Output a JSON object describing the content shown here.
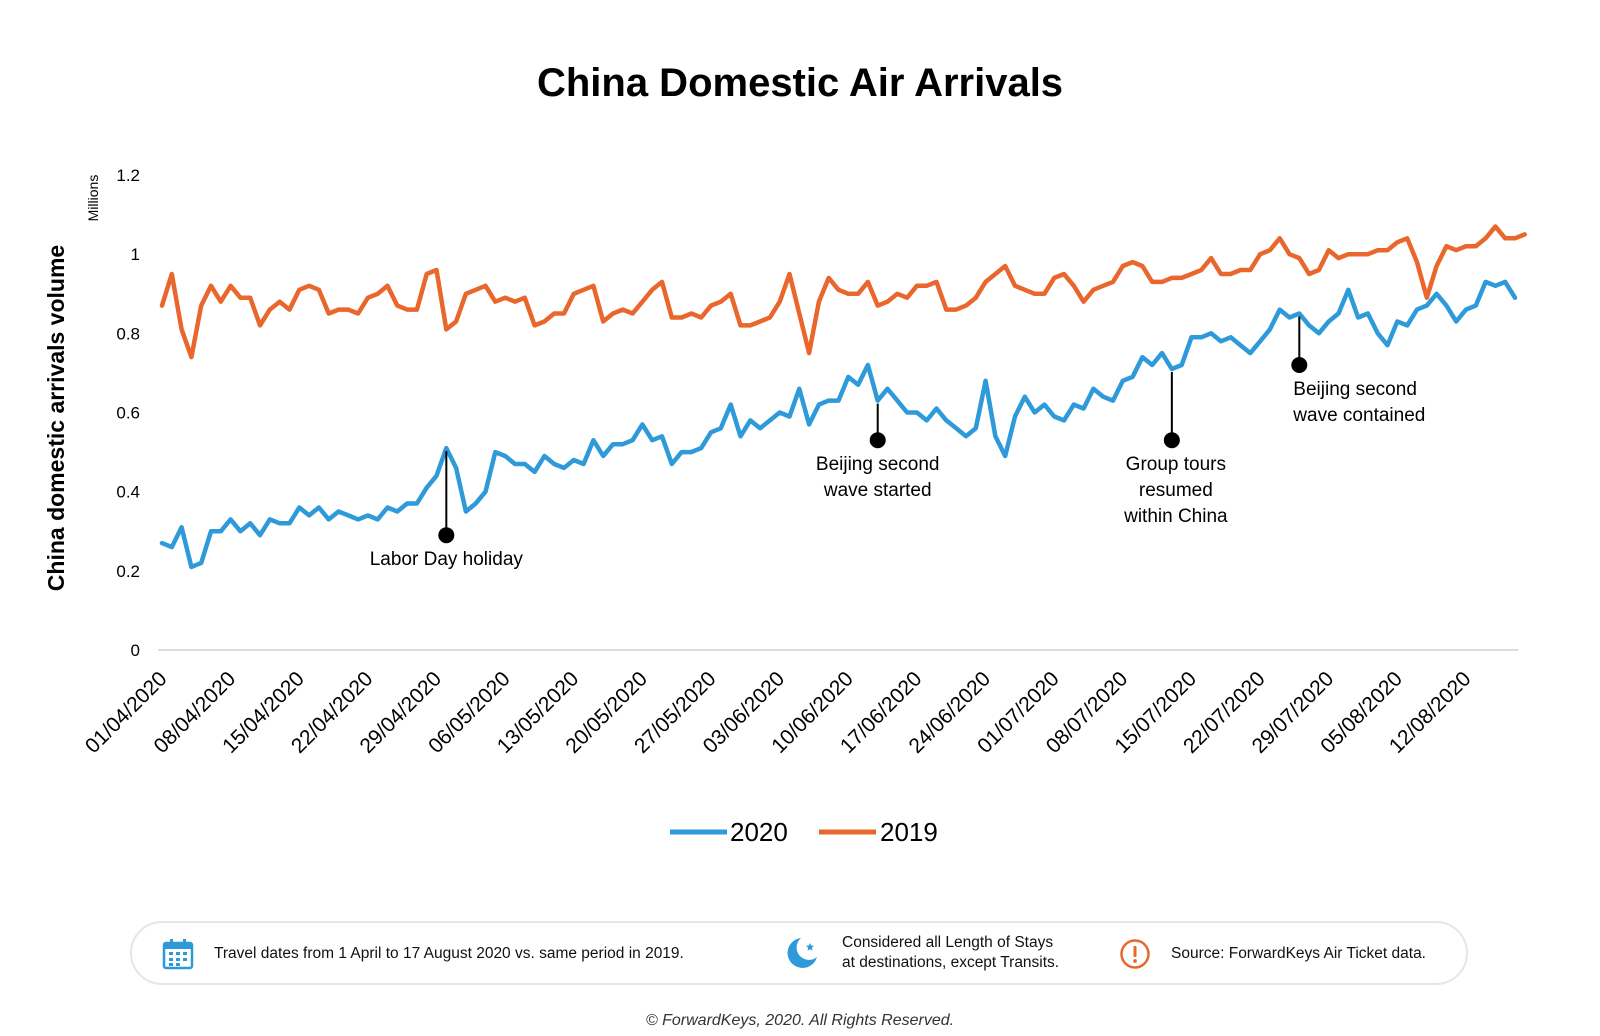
{
  "chart_data": {
    "type": "line",
    "title": "China Domestic Air Arrivals",
    "ylabel": "China domestic arrivals volume",
    "yunit": "Millions",
    "ylim": [
      0,
      1.2
    ],
    "yticks": [
      "0",
      "0.2",
      "0.4",
      "0.6",
      "0.8",
      "1",
      "1.2"
    ],
    "x_start": "01/04/2020",
    "x_end": "17/08/2020",
    "xtick_labels": [
      "01/04/2020",
      "08/04/2020",
      "15/04/2020",
      "22/04/2020",
      "29/04/2020",
      "06/05/2020",
      "13/05/2020",
      "20/05/2020",
      "27/05/2020",
      "03/06/2020",
      "10/06/2020",
      "17/06/2020",
      "24/06/2020",
      "01/07/2020",
      "08/07/2020",
      "15/07/2020",
      "22/07/2020",
      "29/07/2020",
      "05/08/2020",
      "12/08/2020"
    ],
    "legend_position": "bottom",
    "grid": false,
    "series": [
      {
        "name": "2020",
        "color": "#2e9ad9",
        "values": [
          0.27,
          0.26,
          0.31,
          0.21,
          0.22,
          0.3,
          0.3,
          0.33,
          0.3,
          0.32,
          0.29,
          0.33,
          0.32,
          0.32,
          0.36,
          0.34,
          0.36,
          0.33,
          0.35,
          0.34,
          0.33,
          0.34,
          0.33,
          0.36,
          0.35,
          0.37,
          0.37,
          0.41,
          0.44,
          0.51,
          0.46,
          0.35,
          0.37,
          0.4,
          0.5,
          0.49,
          0.47,
          0.47,
          0.45,
          0.49,
          0.47,
          0.46,
          0.48,
          0.47,
          0.53,
          0.49,
          0.52,
          0.52,
          0.53,
          0.57,
          0.53,
          0.54,
          0.47,
          0.5,
          0.5,
          0.51,
          0.55,
          0.56,
          0.62,
          0.54,
          0.58,
          0.56,
          0.58,
          0.6,
          0.59,
          0.66,
          0.57,
          0.62,
          0.63,
          0.63,
          0.69,
          0.67,
          0.72,
          0.63,
          0.66,
          0.63,
          0.6,
          0.6,
          0.58,
          0.61,
          0.58,
          0.56,
          0.54,
          0.56,
          0.68,
          0.54,
          0.49,
          0.59,
          0.64,
          0.6,
          0.62,
          0.59,
          0.58,
          0.62,
          0.61,
          0.66,
          0.64,
          0.63,
          0.68,
          0.69,
          0.74,
          0.72,
          0.75,
          0.71,
          0.72,
          0.79,
          0.79,
          0.8,
          0.78,
          0.79,
          0.77,
          0.75,
          0.78,
          0.81,
          0.86,
          0.84,
          0.85,
          0.82,
          0.8,
          0.83,
          0.85,
          0.91,
          0.84,
          0.85,
          0.8,
          0.77,
          0.83,
          0.82,
          0.86,
          0.87,
          0.9,
          0.87,
          0.83,
          0.86,
          0.87,
          0.93,
          0.92,
          0.93,
          0.89
        ]
      },
      {
        "name": "2019",
        "color": "#e9662c",
        "values": [
          0.87,
          0.95,
          0.81,
          0.74,
          0.87,
          0.92,
          0.88,
          0.92,
          0.89,
          0.89,
          0.82,
          0.86,
          0.88,
          0.86,
          0.91,
          0.92,
          0.91,
          0.85,
          0.86,
          0.86,
          0.85,
          0.89,
          0.9,
          0.92,
          0.87,
          0.86,
          0.86,
          0.95,
          0.96,
          0.81,
          0.83,
          0.9,
          0.91,
          0.92,
          0.88,
          0.89,
          0.88,
          0.89,
          0.82,
          0.83,
          0.85,
          0.85,
          0.9,
          0.91,
          0.92,
          0.83,
          0.85,
          0.86,
          0.85,
          0.88,
          0.91,
          0.93,
          0.84,
          0.84,
          0.85,
          0.84,
          0.87,
          0.88,
          0.9,
          0.82,
          0.82,
          0.83,
          0.84,
          0.88,
          0.95,
          0.85,
          0.75,
          0.88,
          0.94,
          0.91,
          0.9,
          0.9,
          0.93,
          0.87,
          0.88,
          0.9,
          0.89,
          0.92,
          0.92,
          0.93,
          0.86,
          0.86,
          0.87,
          0.89,
          0.93,
          0.95,
          0.97,
          0.92,
          0.91,
          0.9,
          0.9,
          0.94,
          0.95,
          0.92,
          0.88,
          0.91,
          0.92,
          0.93,
          0.97,
          0.98,
          0.97,
          0.93,
          0.93,
          0.94,
          0.94,
          0.95,
          0.96,
          0.99,
          0.95,
          0.95,
          0.96,
          0.96,
          1.0,
          1.01,
          1.04,
          1.0,
          0.99,
          0.95,
          0.96,
          1.01,
          0.99,
          1.0,
          1.0,
          1.0,
          1.01,
          1.01,
          1.03,
          1.04,
          0.98,
          0.89,
          0.97,
          1.02,
          1.01,
          1.02,
          1.02,
          1.04,
          1.07,
          1.04,
          1.04,
          1.05
        ]
      }
    ],
    "annotations": [
      {
        "id": "labor-day",
        "x_index": 29,
        "point_y": 0.29,
        "text": [
          "Labor Day holiday"
        ]
      },
      {
        "id": "beijing-start",
        "x_index": 73,
        "point_y": 0.53,
        "text": [
          "Beijing second",
          "wave started"
        ]
      },
      {
        "id": "group-tours",
        "x_index": 103,
        "point_y": 0.53,
        "text": [
          "Group tours",
          "resumed",
          "within China"
        ]
      },
      {
        "id": "beijing-contained",
        "x_index": 116,
        "point_y": 0.72,
        "text": [
          "Beijing second",
          "wave contained"
        ]
      }
    ]
  },
  "footer": {
    "items": [
      {
        "icon": "calendar-icon",
        "text": [
          "Travel dates from 1 April to 17 August 2020 vs. same period in 2019."
        ],
        "color": "#2e9ad9"
      },
      {
        "icon": "moon-icon",
        "text": [
          "Considered all Length of Stays",
          "at destinations, except Transits."
        ],
        "color": "#2e9ad9"
      },
      {
        "icon": "alert-icon",
        "text": [
          "Source: ForwardKeys Air Ticket data."
        ],
        "color": "#e9662c"
      }
    ],
    "copyright": "© ForwardKeys, 2020. All Rights Reserved."
  }
}
